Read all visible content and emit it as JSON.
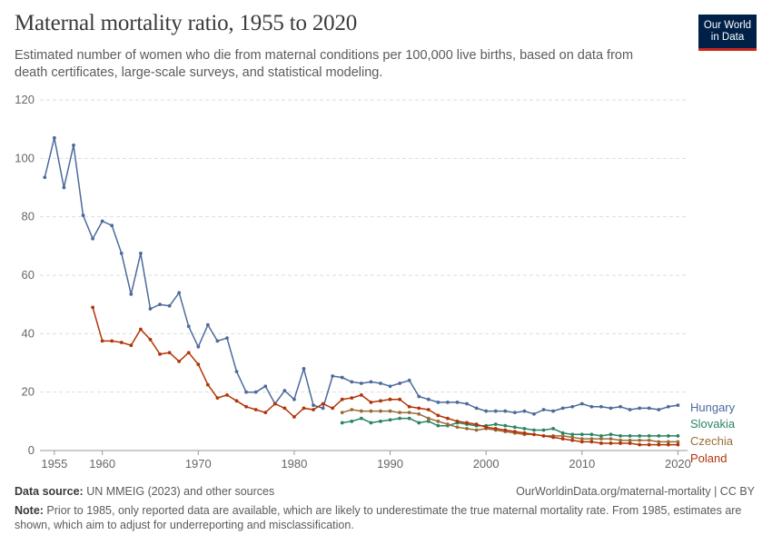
{
  "header": {
    "title": "Maternal mortality ratio, 1955 to 2020",
    "subtitle": "Estimated number of women who die from maternal conditions per 100,000 live births, based on data from death certificates, large-scale surveys, and statistical modeling.",
    "logo_line1": "Our World",
    "logo_line2": "in Data"
  },
  "footer": {
    "source_label": "Data source:",
    "source_text": " UN MMEIG (2023) and other sources",
    "url_text": "OurWorldinData.org/maternal-mortality | CC BY",
    "note_label": "Note:",
    "note_text": " Prior to 1985, only reported data are available, which are likely to underestimate the true maternal mortality rate. From 1985, estimates are shown, which aim to adjust for underreporting and misclassification."
  },
  "chart_data": {
    "type": "line",
    "title": "Maternal mortality ratio, 1955 to 2020",
    "xlim": [
      1953.5,
      2021
    ],
    "ylim": [
      0,
      120
    ],
    "yticks": [
      0,
      20,
      40,
      60,
      80,
      100,
      120
    ],
    "xticks": [
      1955,
      1960,
      1970,
      1980,
      1990,
      2000,
      2010,
      2020
    ],
    "grid": "horizontal dashed",
    "legend": "inline labels at right end",
    "series": [
      {
        "name": "Hungary",
        "color": "#4c6a9c",
        "x": [
          1954,
          1955,
          1956,
          1957,
          1958,
          1959,
          1960,
          1961,
          1962,
          1963,
          1964,
          1965,
          1966,
          1967,
          1968,
          1969,
          1970,
          1971,
          1972,
          1973,
          1974,
          1975,
          1976,
          1977,
          1978,
          1979,
          1980,
          1981,
          1982,
          1983,
          1984,
          1985,
          1986,
          1987,
          1988,
          1989,
          1990,
          1991,
          1992,
          1993,
          1994,
          1995,
          1996,
          1997,
          1998,
          1999,
          2000,
          2001,
          2002,
          2003,
          2004,
          2005,
          2006,
          2007,
          2008,
          2009,
          2010,
          2011,
          2012,
          2013,
          2014,
          2015,
          2016,
          2017,
          2018,
          2019,
          2020
        ],
        "y": [
          93.5,
          107,
          90,
          104.5,
          80.5,
          72.5,
          78.5,
          77,
          67.5,
          53.5,
          67.5,
          48.5,
          50,
          49.5,
          54,
          42.5,
          35.5,
          43,
          37.5,
          38.5,
          27,
          20,
          20,
          22,
          16,
          20.5,
          17.5,
          28,
          15.5,
          14.5,
          25.5,
          25,
          23.5,
          23,
          23.5,
          23,
          22,
          23,
          24,
          18.5,
          17.5,
          16.5,
          16.5,
          16.5,
          16,
          14.5,
          13.5,
          13.5,
          13.5,
          13,
          13.5,
          12.5,
          14,
          13.5,
          14.5,
          15,
          16,
          15,
          15,
          14.5,
          15,
          14,
          14.5,
          14.5,
          14,
          15,
          15.5
        ]
      },
      {
        "name": "Slovakia",
        "color": "#2b8465",
        "x": [
          1985,
          1986,
          1987,
          1988,
          1989,
          1990,
          1991,
          1992,
          1993,
          1994,
          1995,
          1996,
          1997,
          1998,
          1999,
          2000,
          2001,
          2002,
          2003,
          2004,
          2005,
          2006,
          2007,
          2008,
          2009,
          2010,
          2011,
          2012,
          2013,
          2014,
          2015,
          2016,
          2017,
          2018,
          2019,
          2020
        ],
        "y": [
          9.5,
          10,
          11,
          9.5,
          10,
          10.5,
          11,
          11,
          9.5,
          10,
          8.5,
          8.5,
          9.5,
          9,
          8.5,
          8.5,
          9,
          8.5,
          8,
          7.5,
          7,
          7,
          7.5,
          6,
          5.5,
          5.5,
          5.5,
          5,
          5.5,
          5,
          5,
          5,
          5,
          5,
          5,
          5
        ]
      },
      {
        "name": "Czechia",
        "color": "#996d39",
        "x": [
          1985,
          1986,
          1987,
          1988,
          1989,
          1990,
          1991,
          1992,
          1993,
          1994,
          1995,
          1996,
          1997,
          1998,
          1999,
          2000,
          2001,
          2002,
          2003,
          2004,
          2005,
          2006,
          2007,
          2008,
          2009,
          2010,
          2011,
          2012,
          2013,
          2014,
          2015,
          2016,
          2017,
          2018,
          2019,
          2020
        ],
        "y": [
          13,
          14,
          13.5,
          13.5,
          13.5,
          13.5,
          13,
          13,
          12.5,
          11,
          10,
          9,
          8,
          7.5,
          7,
          7.5,
          7,
          6.5,
          6,
          5.5,
          5.5,
          5,
          5,
          5,
          4.5,
          4,
          4,
          4,
          4,
          3.5,
          3.5,
          3.5,
          3.5,
          3,
          3,
          3
        ]
      },
      {
        "name": "Poland",
        "color": "#b13507",
        "x": [
          1959,
          1960,
          1961,
          1962,
          1963,
          1964,
          1965,
          1966,
          1967,
          1968,
          1969,
          1970,
          1971,
          1972,
          1973,
          1974,
          1975,
          1976,
          1977,
          1978,
          1979,
          1980,
          1981,
          1982,
          1983,
          1984,
          1985,
          1986,
          1987,
          1988,
          1989,
          1990,
          1991,
          1992,
          1993,
          1994,
          1995,
          1996,
          1997,
          1998,
          1999,
          2000,
          2001,
          2002,
          2003,
          2004,
          2005,
          2006,
          2007,
          2008,
          2009,
          2010,
          2011,
          2012,
          2013,
          2014,
          2015,
          2016,
          2017,
          2018,
          2019,
          2020
        ],
        "y": [
          49,
          37.5,
          37.5,
          37,
          36,
          41.5,
          38,
          33,
          33.5,
          30.5,
          33.5,
          29.5,
          22.5,
          18,
          19,
          17,
          15,
          14,
          13,
          16,
          14.5,
          11.5,
          14.5,
          14,
          16,
          14.5,
          17.5,
          18,
          19,
          16.5,
          17,
          17.5,
          17.5,
          15,
          14.5,
          14,
          12,
          11,
          10,
          9.5,
          9,
          8,
          7.5,
          7,
          6.5,
          6,
          5.5,
          5,
          4.5,
          4,
          3.5,
          3,
          3,
          2.5,
          2.5,
          2.5,
          2.5,
          2,
          2,
          2,
          2,
          2
        ]
      }
    ]
  }
}
